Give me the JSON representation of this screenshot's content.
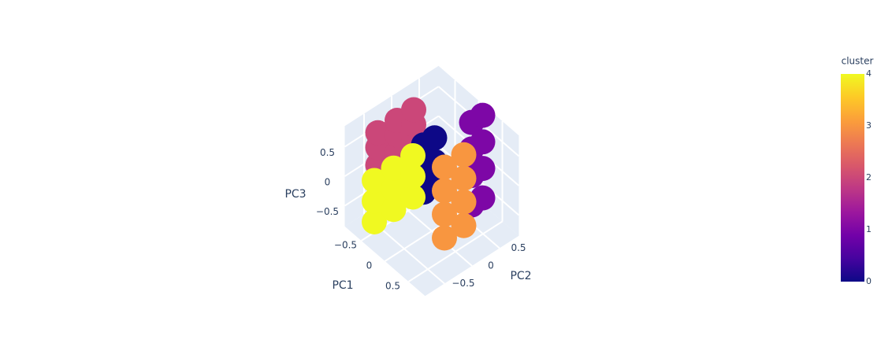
{
  "chart_data": {
    "type": "scatter3d",
    "xaxis_title": "PC1",
    "yaxis_title": "PC2",
    "zaxis_title": "PC3",
    "xlim": [
      -0.85,
      0.85
    ],
    "ylim": [
      -0.85,
      0.85
    ],
    "zlim": [
      -0.85,
      0.85
    ],
    "xticks": [
      {
        "value": -0.5,
        "label": "−0.5"
      },
      0,
      0.5
    ],
    "yticks": [
      {
        "value": -0.5,
        "label": "−0.5"
      },
      0,
      0.5
    ],
    "zticks": [
      {
        "value": -0.5,
        "label": "−0.5"
      },
      0,
      0.5
    ],
    "grid": true,
    "points": {
      "x": [
        -0.5,
        -0.5,
        -0.5,
        -0.5,
        -0.5,
        -0.5,
        -0.5,
        -0.5,
        -0.5,
        0,
        0,
        0,
        0,
        0,
        0,
        0.2,
        0.2,
        0.2,
        0.2,
        0.2,
        0.2,
        0.2,
        0.2,
        -0.4,
        -0.4,
        -0.4,
        -0.4,
        -0.4,
        -0.4,
        -0.4,
        -0.4,
        -0.4,
        0.5,
        0.5,
        0.5,
        0.5,
        0.5,
        0.5,
        0.5,
        0.5
      ],
      "y": [
        -0.55,
        -0.55,
        -0.55,
        -0.2,
        -0.2,
        -0.2,
        0.1,
        0.1,
        0.1,
        -0.15,
        -0.15,
        -0.15,
        0.05,
        0.05,
        0.05,
        0.55,
        0.55,
        0.55,
        0.55,
        0.75,
        0.75,
        0.75,
        0.75,
        -0.7,
        -0.7,
        -0.7,
        -0.35,
        -0.35,
        -0.35,
        0,
        0,
        0,
        -0.2,
        -0.2,
        -0.2,
        -0.2,
        0.15,
        0.15,
        0.15,
        0.15
      ],
      "z": [
        0.25,
        0.55,
        0.8,
        0.25,
        0.55,
        0.8,
        0.25,
        0.55,
        0.8,
        -0.1,
        0.3,
        0.7,
        -0.1,
        0.3,
        0.7,
        -0.6,
        -0.1,
        0.35,
        0.8,
        -0.6,
        -0.1,
        0.35,
        0.8,
        -0.55,
        -0.2,
        0.15,
        -0.55,
        -0.2,
        0.15,
        -0.55,
        -0.2,
        0.15,
        -0.5,
        -0.1,
        0.3,
        0.7,
        -0.5,
        -0.1,
        0.3,
        0.7
      ],
      "cluster": [
        2,
        2,
        2,
        2,
        2,
        2,
        2,
        2,
        2,
        0,
        0,
        0,
        0,
        0,
        0,
        1,
        1,
        1,
        1,
        1,
        1,
        1,
        1,
        4,
        4,
        4,
        4,
        4,
        4,
        4,
        4,
        4,
        3,
        3,
        3,
        3,
        3,
        3,
        3,
        3
      ]
    },
    "colorbar": {
      "title": "cluster",
      "range": [
        0,
        4
      ],
      "ticks": [
        0,
        1,
        2,
        3,
        4
      ]
    },
    "colorscale": [
      "#0d0887",
      "#46039f",
      "#7201a8",
      "#9c179e",
      "#bd3786",
      "#d8576b",
      "#ed7953",
      "#fb9f3a",
      "#fdca26",
      "#f0f921"
    ]
  }
}
